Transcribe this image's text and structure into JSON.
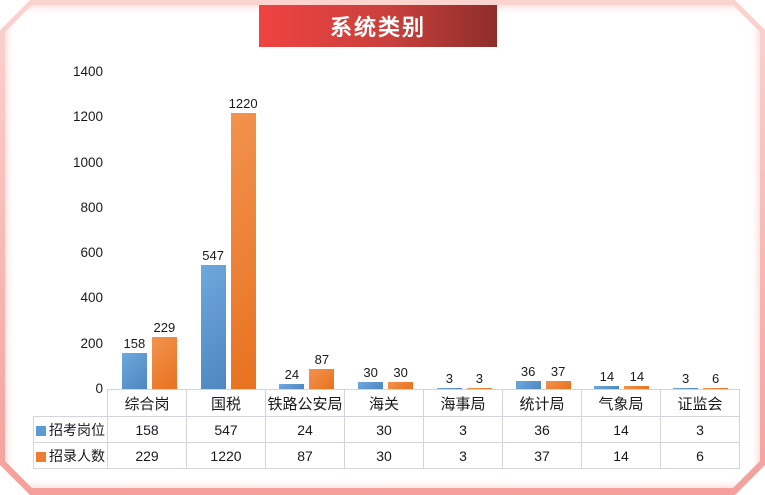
{
  "title": "系统类别",
  "chart_data": {
    "type": "bar",
    "title": "系统类别",
    "categories": [
      "综合岗",
      "国税",
      "铁路公安局",
      "海关",
      "海事局",
      "统计局",
      "气象局",
      "证监会"
    ],
    "series": [
      {
        "name": "招考岗位",
        "color": "#5B9BD5",
        "values": [
          158,
          547,
          24,
          30,
          3,
          36,
          14,
          3
        ]
      },
      {
        "name": "招录人数",
        "color": "#ED7D31",
        "values": [
          229,
          1220,
          87,
          30,
          3,
          37,
          14,
          6
        ]
      }
    ],
    "ylim": [
      0,
      1400
    ],
    "yticks": [
      0,
      200,
      400,
      600,
      800,
      1000,
      1200,
      1400
    ],
    "grid": false,
    "data_labels": true,
    "legend_position": "data-table-left"
  },
  "colors": {
    "banner_start": "#ef4341",
    "banner_end": "#8e2d2b",
    "frame_pink": "#f5a09b",
    "frame_pink_light": "#fbd3cf",
    "table_border": "#d4d4de",
    "text": "#1a1a1a"
  }
}
